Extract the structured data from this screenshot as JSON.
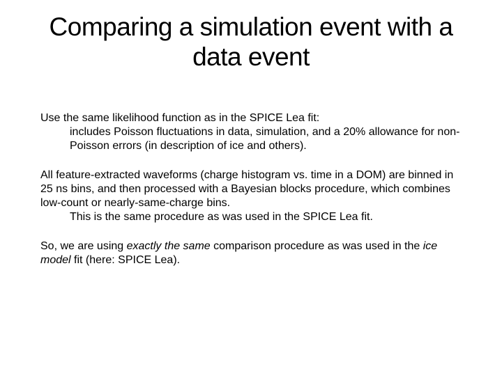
{
  "title": "Comparing a simulation event with a data event",
  "p1": {
    "line1": "Use the same likelihood function as in the SPICE Lea fit:",
    "line2": "includes Poisson fluctuations in data, simulation, and a 20% allowance for non-Poisson errors (in description of ice and others)."
  },
  "p2": {
    "line1": "All feature-extracted waveforms (charge histogram vs. time in a DOM) are binned in 25 ns bins, and then processed with a Bayesian blocks procedure, which combines low-count or nearly-same-charge bins.",
    "line2": "This is the same procedure as was used in the SPICE Lea fit."
  },
  "p3": {
    "pre": "So, we are using ",
    "em1": "exactly the same",
    "mid": " comparison procedure as was used in the ",
    "em2": "ice model",
    "post": " fit (here: SPICE Lea)."
  }
}
